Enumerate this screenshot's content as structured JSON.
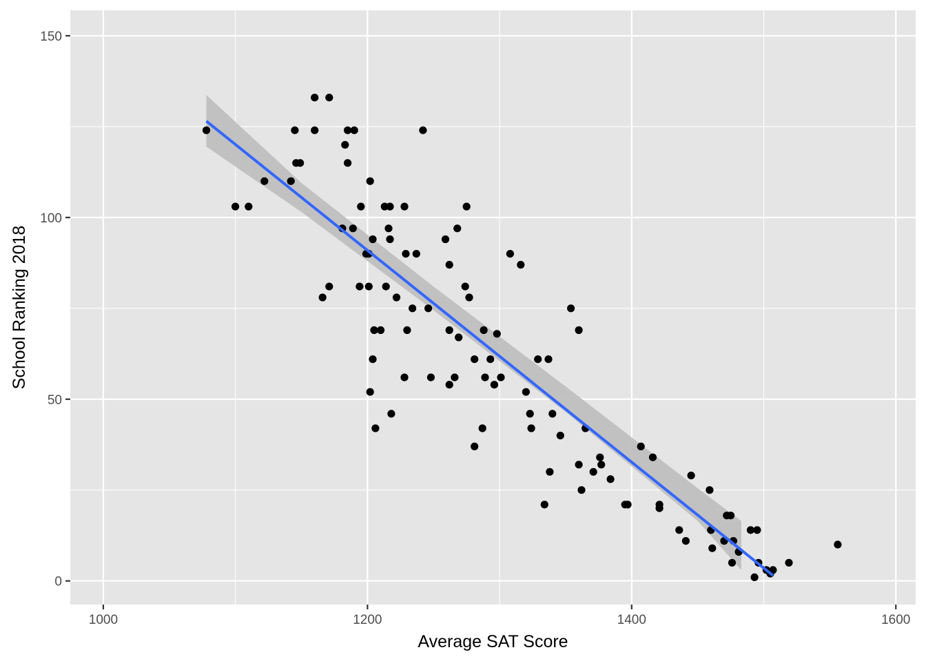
{
  "chart_data": {
    "type": "scatter",
    "title": "",
    "xlabel": "Average SAT Score",
    "ylabel": "School Ranking 2018",
    "xlim": [
      975,
      1615
    ],
    "ylim": [
      -6.5,
      157
    ],
    "x_ticks": [
      1000,
      1200,
      1400,
      1600
    ],
    "y_ticks": [
      0,
      50,
      100,
      150
    ],
    "x_tick_labels": [
      "1000",
      "1200",
      "1400",
      "1600"
    ],
    "y_tick_labels": [
      "0",
      "50",
      "100",
      "150"
    ],
    "grid": true,
    "legend": "none",
    "colors": {
      "panel_background": "#e5e5e5",
      "grid_major": "#ffffff",
      "points": "#000000",
      "fit_line": "#3366ff",
      "confidence_band": "#bfbfbf"
    },
    "trend_line": {
      "method": "linear",
      "x": [
        1078,
        1507
      ],
      "y": [
        126.5,
        1.5
      ],
      "confidence_band": {
        "x": [
          1078,
          1150,
          1250,
          1350,
          1450,
          1483
        ],
        "upper": [
          133.7,
          109.5,
          81.0,
          53.5,
          25.5,
          16.5
        ],
        "lower": [
          119.5,
          101.5,
          74.5,
          46.5,
          16.5,
          3.0
        ]
      }
    },
    "points": [
      {
        "x": 1078,
        "y": 124
      },
      {
        "x": 1100,
        "y": 103
      },
      {
        "x": 1110,
        "y": 103
      },
      {
        "x": 1122,
        "y": 110
      },
      {
        "x": 1142,
        "y": 110
      },
      {
        "x": 1145,
        "y": 124
      },
      {
        "x": 1146,
        "y": 115
      },
      {
        "x": 1149,
        "y": 115
      },
      {
        "x": 1160,
        "y": 124
      },
      {
        "x": 1160,
        "y": 133
      },
      {
        "x": 1166,
        "y": 78
      },
      {
        "x": 1171,
        "y": 81
      },
      {
        "x": 1171,
        "y": 133
      },
      {
        "x": 1181,
        "y": 97
      },
      {
        "x": 1183,
        "y": 120
      },
      {
        "x": 1185,
        "y": 124
      },
      {
        "x": 1185,
        "y": 115
      },
      {
        "x": 1189,
        "y": 97
      },
      {
        "x": 1190,
        "y": 124
      },
      {
        "x": 1194,
        "y": 81
      },
      {
        "x": 1195,
        "y": 103
      },
      {
        "x": 1199,
        "y": 90
      },
      {
        "x": 1201,
        "y": 81
      },
      {
        "x": 1201,
        "y": 90
      },
      {
        "x": 1202,
        "y": 110
      },
      {
        "x": 1202,
        "y": 52
      },
      {
        "x": 1204,
        "y": 61
      },
      {
        "x": 1204,
        "y": 94
      },
      {
        "x": 1205,
        "y": 69
      },
      {
        "x": 1206,
        "y": 42
      },
      {
        "x": 1210,
        "y": 69
      },
      {
        "x": 1213,
        "y": 103
      },
      {
        "x": 1214,
        "y": 81
      },
      {
        "x": 1216,
        "y": 97
      },
      {
        "x": 1217,
        "y": 94
      },
      {
        "x": 1217,
        "y": 103
      },
      {
        "x": 1218,
        "y": 46
      },
      {
        "x": 1222,
        "y": 78
      },
      {
        "x": 1228,
        "y": 56
      },
      {
        "x": 1228,
        "y": 103
      },
      {
        "x": 1229,
        "y": 90
      },
      {
        "x": 1230,
        "y": 69
      },
      {
        "x": 1234,
        "y": 75
      },
      {
        "x": 1237,
        "y": 90
      },
      {
        "x": 1242,
        "y": 124
      },
      {
        "x": 1246,
        "y": 75
      },
      {
        "x": 1248,
        "y": 56
      },
      {
        "x": 1259,
        "y": 94
      },
      {
        "x": 1262,
        "y": 87
      },
      {
        "x": 1262,
        "y": 69
      },
      {
        "x": 1262,
        "y": 54
      },
      {
        "x": 1266,
        "y": 56
      },
      {
        "x": 1268,
        "y": 97
      },
      {
        "x": 1269,
        "y": 67
      },
      {
        "x": 1274,
        "y": 81
      },
      {
        "x": 1275,
        "y": 103
      },
      {
        "x": 1277,
        "y": 78
      },
      {
        "x": 1281,
        "y": 61
      },
      {
        "x": 1281,
        "y": 37
      },
      {
        "x": 1287,
        "y": 42
      },
      {
        "x": 1288,
        "y": 69
      },
      {
        "x": 1289,
        "y": 56
      },
      {
        "x": 1293,
        "y": 61
      },
      {
        "x": 1296,
        "y": 54
      },
      {
        "x": 1298,
        "y": 68
      },
      {
        "x": 1301,
        "y": 56
      },
      {
        "x": 1308,
        "y": 90
      },
      {
        "x": 1316,
        "y": 87
      },
      {
        "x": 1320,
        "y": 52
      },
      {
        "x": 1323,
        "y": 46
      },
      {
        "x": 1324,
        "y": 42
      },
      {
        "x": 1329,
        "y": 61
      },
      {
        "x": 1334,
        "y": 21
      },
      {
        "x": 1337,
        "y": 61
      },
      {
        "x": 1338,
        "y": 30
      },
      {
        "x": 1340,
        "y": 46
      },
      {
        "x": 1346,
        "y": 40
      },
      {
        "x": 1354,
        "y": 75
      },
      {
        "x": 1360,
        "y": 32
      },
      {
        "x": 1360,
        "y": 69
      },
      {
        "x": 1362,
        "y": 25
      },
      {
        "x": 1365,
        "y": 42
      },
      {
        "x": 1371,
        "y": 30
      },
      {
        "x": 1376,
        "y": 34
      },
      {
        "x": 1377,
        "y": 32
      },
      {
        "x": 1384,
        "y": 28
      },
      {
        "x": 1395,
        "y": 21
      },
      {
        "x": 1397,
        "y": 21
      },
      {
        "x": 1407,
        "y": 37
      },
      {
        "x": 1416,
        "y": 34
      },
      {
        "x": 1421,
        "y": 20
      },
      {
        "x": 1421,
        "y": 21
      },
      {
        "x": 1436,
        "y": 14
      },
      {
        "x": 1441,
        "y": 11
      },
      {
        "x": 1445,
        "y": 29
      },
      {
        "x": 1459,
        "y": 25
      },
      {
        "x": 1460,
        "y": 14
      },
      {
        "x": 1461,
        "y": 9
      },
      {
        "x": 1470,
        "y": 11
      },
      {
        "x": 1472,
        "y": 18
      },
      {
        "x": 1475,
        "y": 18
      },
      {
        "x": 1476,
        "y": 5
      },
      {
        "x": 1477,
        "y": 11
      },
      {
        "x": 1481,
        "y": 8
      },
      {
        "x": 1490,
        "y": 14
      },
      {
        "x": 1493,
        "y": 1
      },
      {
        "x": 1495,
        "y": 14
      },
      {
        "x": 1496,
        "y": 5
      },
      {
        "x": 1502,
        "y": 3
      },
      {
        "x": 1505,
        "y": 2
      },
      {
        "x": 1507,
        "y": 3
      },
      {
        "x": 1519,
        "y": 5
      },
      {
        "x": 1556,
        "y": 10
      }
    ]
  }
}
